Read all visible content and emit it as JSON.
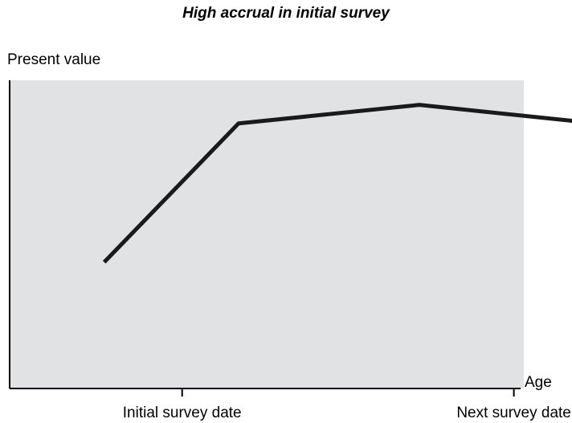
{
  "chart_data": {
    "type": "line",
    "title": "High accrual in initial survey",
    "ylabel": "Present value",
    "xlabel": "Age",
    "x_tick_labels": [
      {
        "label": "Initial survey date",
        "x": 1.0
      },
      {
        "label": "Next survey date",
        "x": 3.0
      }
    ],
    "xlim": [
      -0.04,
      3.06
    ],
    "ylim": [
      0,
      1
    ],
    "series": [
      {
        "x": [
          0.53,
          1.34,
          2.43,
          3.41
        ],
        "values": [
          0.41,
          0.86,
          0.92,
          0.865
        ]
      }
    ],
    "grid": false,
    "plot_background": "#e1e2e4",
    "line_color": "#1a1a1a",
    "axis_color": "#000000"
  }
}
